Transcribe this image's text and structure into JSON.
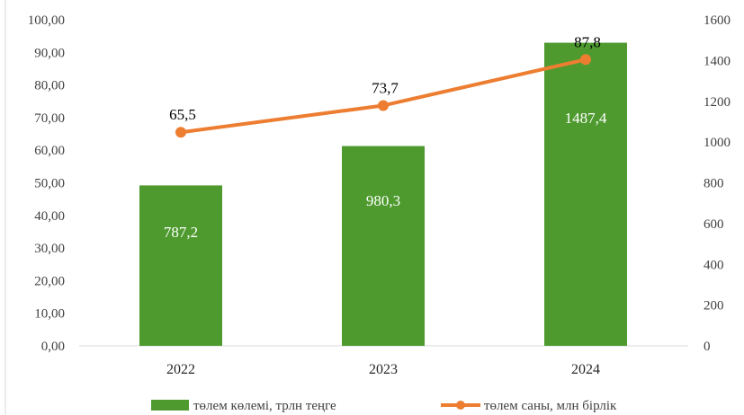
{
  "chart_data": {
    "type": "bar",
    "categories": [
      "2022",
      "2023",
      "2024"
    ],
    "series": [
      {
        "name": "төлем көлемі, трлн теңге",
        "kind": "bar",
        "axis": "right",
        "values": [
          787.2,
          980.3,
          1487.4
        ],
        "labels": [
          "787,2",
          "980,3",
          "1487,4"
        ],
        "color": "#4e9a2f"
      },
      {
        "name": "төлем саны, млн бірлік",
        "kind": "line",
        "axis": "left",
        "values": [
          65.5,
          73.7,
          87.8
        ],
        "labels": [
          "65,5",
          "73,7",
          "87,8"
        ],
        "color": "#ed7d31"
      }
    ],
    "y_left": {
      "ylim": [
        0,
        100
      ],
      "ticks": [
        "0,00",
        "10,00",
        "20,00",
        "30,00",
        "40,00",
        "50,00",
        "60,00",
        "70,00",
        "80,00",
        "90,00",
        "100,00"
      ]
    },
    "y_right": {
      "ylim": [
        0,
        1600
      ],
      "ticks": [
        "0",
        "200",
        "400",
        "600",
        "800",
        "1000",
        "1200",
        "1400",
        "1600"
      ]
    },
    "legend": "bottom",
    "grid": false
  }
}
